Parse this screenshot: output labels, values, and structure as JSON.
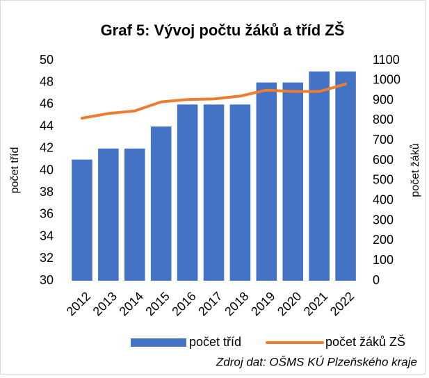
{
  "chart_data": {
    "type": "bar",
    "title": "Graf 5: Vývoj počtu žáků a tříd ZŠ",
    "categories": [
      "2012",
      "2013",
      "2014",
      "2015",
      "2016",
      "2017",
      "2018",
      "2019",
      "2020",
      "2021",
      "2022"
    ],
    "series": [
      {
        "name": "počet tříd",
        "color": "#4472c4",
        "type": "bar",
        "values": [
          41,
          42,
          42,
          44,
          46,
          46,
          46,
          48,
          48,
          49,
          49
        ]
      },
      {
        "name": "počet žáků ZŠ",
        "color": "#ed7d31",
        "type": "line",
        "axis": "y2",
        "values": [
          812,
          835,
          848,
          893,
          905,
          908,
          922,
          952,
          945,
          945,
          982
        ]
      }
    ],
    "ylabel": "počet tříd",
    "y2label": "počet žáků",
    "ylim": [
      30,
      50
    ],
    "yticks": [
      30,
      32,
      34,
      36,
      38,
      40,
      42,
      44,
      46,
      48,
      50
    ],
    "y2lim": [
      0,
      1100
    ],
    "y2ticks": [
      0,
      100,
      200,
      300,
      400,
      500,
      600,
      700,
      800,
      900,
      1000,
      1100
    ],
    "grid": false,
    "legend": "bottom",
    "source": "Zdroj dat: OŠMS KÚ Plzeňského kraje"
  }
}
